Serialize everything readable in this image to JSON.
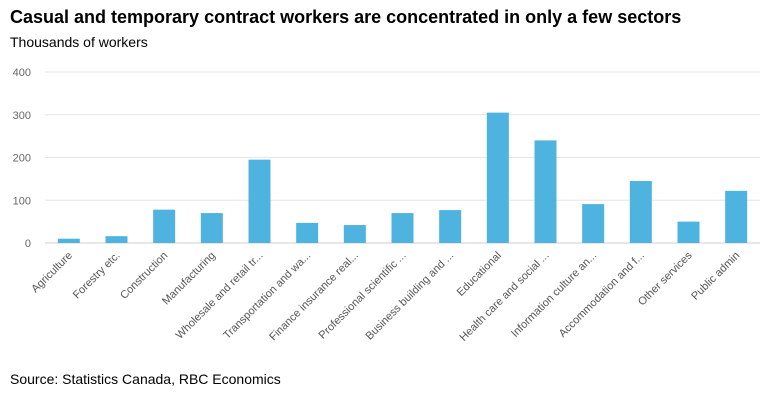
{
  "header": {
    "title": "Casual and temporary contract workers are concentrated in only a few sectors",
    "subtitle": "Thousands of workers"
  },
  "footer": {
    "source": "Source: Statistics Canada, RBC Economics"
  },
  "colors": {
    "bar": "#4fb3e0",
    "grid": "#e6e6e6",
    "axis": "#cfcfcf"
  },
  "chart_data": {
    "type": "bar",
    "title": "Casual and temporary contract workers are concentrated in only a few sectors",
    "ylabel": "Thousands of workers",
    "xlabel": "",
    "ylim": [
      0,
      400
    ],
    "yticks": [
      0,
      100,
      200,
      300,
      400
    ],
    "grid": true,
    "categories": [
      "Agriculture",
      "Forestry etc.",
      "Construction",
      "Manufacturing",
      "Wholesale and retail tr...",
      "Transportation and wa...",
      "Finance insurance real...",
      "Professional scientific ...",
      "Business building and ...",
      "Educational",
      "Health care and social ...",
      "Information culture an...",
      "Accommodation and f...",
      "Other services",
      "Public admin"
    ],
    "values": [
      10,
      16,
      78,
      70,
      195,
      47,
      42,
      70,
      77,
      305,
      240,
      91,
      145,
      50,
      122
    ]
  }
}
